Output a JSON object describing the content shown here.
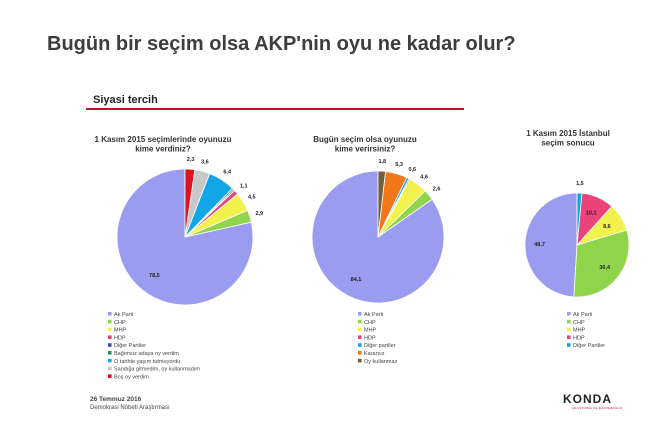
{
  "page": {
    "title": "Bugün bir seçim olsa AKP'nin oyu ne kadar olur?",
    "subtitle": "Siyasi tercih",
    "footer_date": "26 Temmuz 2016",
    "footer_source": "Demokrasi Nöbeti Araştırması",
    "logo": "KONDA",
    "logo_tagline": "ARAŞTIRMA VE DANIŞMANLIK",
    "accent_color": "#c8102e"
  },
  "chart_data": [
    {
      "type": "pie",
      "title_lines": [
        "1 Kasım 2015 seçimlerinde oyunuzu",
        "kime verdiniz?"
      ],
      "slices": [
        {
          "label": "Ak Parti",
          "value": 78.5,
          "value_text": "78,5",
          "color": "#9a9cf0"
        },
        {
          "label": "CHP",
          "value": 2.9,
          "value_text": "2,9",
          "color": "#8fd44a"
        },
        {
          "label": "MHP",
          "value": 4.5,
          "value_text": "4,5",
          "color": "#f2f24e"
        },
        {
          "label": "HDP",
          "value": 1.1,
          "value_text": "1,1",
          "color": "#e8447a"
        },
        {
          "label": "Diğer Partiler",
          "value": 0.3,
          "value_text": "",
          "color": "#3f4fa8"
        },
        {
          "label": "Bağımsız adaya oy verdim",
          "value": 0.4,
          "value_text": "",
          "color": "#2e8f5a"
        },
        {
          "label": "O tarihte yaşım tutmuyordu",
          "value": 6.4,
          "value_text": "6,4",
          "color": "#12a6e8"
        },
        {
          "label": "Sandığa gitmedim, oy kullanmadım",
          "value": 3.6,
          "value_text": "3,6",
          "color": "#c8c8c8"
        },
        {
          "label": "Boş oy verdim",
          "value": 2.3,
          "value_text": "2,3",
          "color": "#e0101e"
        }
      ]
    },
    {
      "type": "pie",
      "title_lines": [
        "Bugün seçim olsa oyunuzu",
        "kime verirsiniz?"
      ],
      "slices": [
        {
          "label": "Ak Parti",
          "value": 84.1,
          "value_text": "84,1",
          "color": "#9a9cf0"
        },
        {
          "label": "CHP",
          "value": 2.6,
          "value_text": "2,6",
          "color": "#8fd44a"
        },
        {
          "label": "MHP",
          "value": 4.6,
          "value_text": "4,6",
          "color": "#f2f24e"
        },
        {
          "label": "HDP",
          "value": 0.3,
          "value_text": "",
          "color": "#e8447a"
        },
        {
          "label": "Diğer partiler",
          "value": 0.6,
          "value_text": "0,6",
          "color": "#12a6e8"
        },
        {
          "label": "Kararsız",
          "value": 5.3,
          "value_text": "5,3",
          "color": "#f07818"
        },
        {
          "label": "Oy kullanmaz",
          "value": 1.8,
          "value_text": "1,8",
          "color": "#706040"
        }
      ]
    },
    {
      "type": "pie",
      "title_lines": [
        "1 Kasım 2015 İstanbul",
        "seçim sonucu"
      ],
      "slices": [
        {
          "label": "Ak Parti",
          "value": 48.7,
          "value_text": "48,7",
          "color": "#9a9cf0"
        },
        {
          "label": "CHP",
          "value": 30.4,
          "value_text": "30,4",
          "color": "#8fd44a"
        },
        {
          "label": "MHP",
          "value": 8.6,
          "value_text": "8,6",
          "color": "#f2f24e"
        },
        {
          "label": "HDP",
          "value": 10.1,
          "value_text": "10,1",
          "color": "#e8447a"
        },
        {
          "label": "Diğer Partiler",
          "value": 1.5,
          "value_text": "1,5",
          "color": "#12a6e8"
        }
      ]
    }
  ]
}
